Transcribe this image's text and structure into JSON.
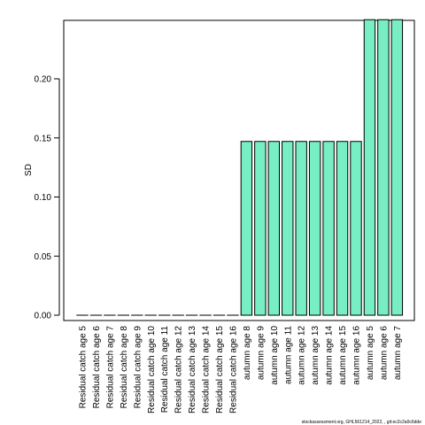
{
  "chart_data": {
    "type": "bar",
    "ylabel": "SD",
    "xlabel": "",
    "title": "",
    "ylim": [
      0,
      0.25
    ],
    "yticks": [
      "0.00",
      "0.05",
      "0.10",
      "0.15",
      "0.20"
    ],
    "bar_color": "#78EEC4",
    "bar_edge_color": "#000000",
    "categories": [
      "Residual catch age 5",
      "Residual catch age 6",
      "Residual catch age 7",
      "Residual catch age 8",
      "Residual catch age 9",
      "Residual catch age 10",
      "Residual catch age 11",
      "Residual catch age 12",
      "Residual catch age 13",
      "Residual catch age 14",
      "Residual catch age 15",
      "Residual catch age 16",
      "autumn age 8",
      "autumn age 9",
      "autumn age 10",
      "autumn age 11",
      "autumn age 12",
      "autumn age 13",
      "autumn age 14",
      "autumn age 15",
      "autumn age 16",
      "autumn age 5",
      "autumn age 6",
      "autumn age 7"
    ],
    "values": [
      0,
      0,
      0,
      0,
      0,
      0,
      0,
      0,
      0,
      0,
      0,
      0,
      0.147,
      0.147,
      0.147,
      0.147,
      0.147,
      0.147,
      0.147,
      0.147,
      0.147,
      0.25,
      0.25,
      0.25
    ],
    "grid": false,
    "legend": "none"
  },
  "footer": {
    "source": "stockassessment.org, GHL561214_2022, , git:ec2c2a0c6dde"
  }
}
